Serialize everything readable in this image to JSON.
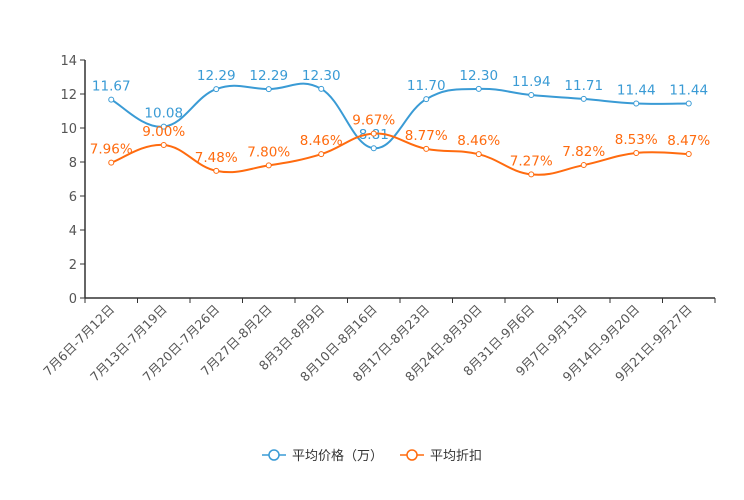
{
  "chart_data": {
    "type": "line",
    "categories": [
      "7月6日-7月12日",
      "7月13日-7月19日",
      "7月20日-7月26日",
      "7月27日-8月2日",
      "8月3日-8月9日",
      "8月10日-8月16日",
      "8月17日-8月23日",
      "8月24日-8月30日",
      "8月31日-9月6日",
      "9月7日-9月13日",
      "9月14日-9月20日",
      "9月21日-9月27日"
    ],
    "ylim": [
      0,
      14
    ],
    "yticks": [
      0,
      2,
      4,
      6,
      8,
      10,
      12,
      14
    ],
    "legend_position": "bottom",
    "series": [
      {
        "name": "平均价格（万）",
        "color": "#3a9bd5",
        "suffix": "",
        "values": [
          11.67,
          10.08,
          12.29,
          12.29,
          12.3,
          8.81,
          11.7,
          12.3,
          11.94,
          11.71,
          11.44,
          11.44
        ],
        "labels": [
          "11.67",
          "10.08",
          "12.29",
          "12.29",
          "12.30",
          "8.81",
          "11.70",
          "12.30",
          "11.94",
          "11.71",
          "11.44",
          "11.44"
        ]
      },
      {
        "name": "平均折扣",
        "color": "#ff6b0f",
        "suffix": "%",
        "values": [
          7.96,
          9.0,
          7.48,
          7.8,
          8.46,
          9.67,
          8.77,
          8.46,
          7.27,
          7.82,
          8.53,
          8.47
        ],
        "labels": [
          "7.96%",
          "9.00%",
          "7.48%",
          "7.80%",
          "8.46%",
          "9.67%",
          "8.77%",
          "8.46%",
          "7.27%",
          "7.82%",
          "8.53%",
          "8.47%"
        ]
      }
    ]
  }
}
